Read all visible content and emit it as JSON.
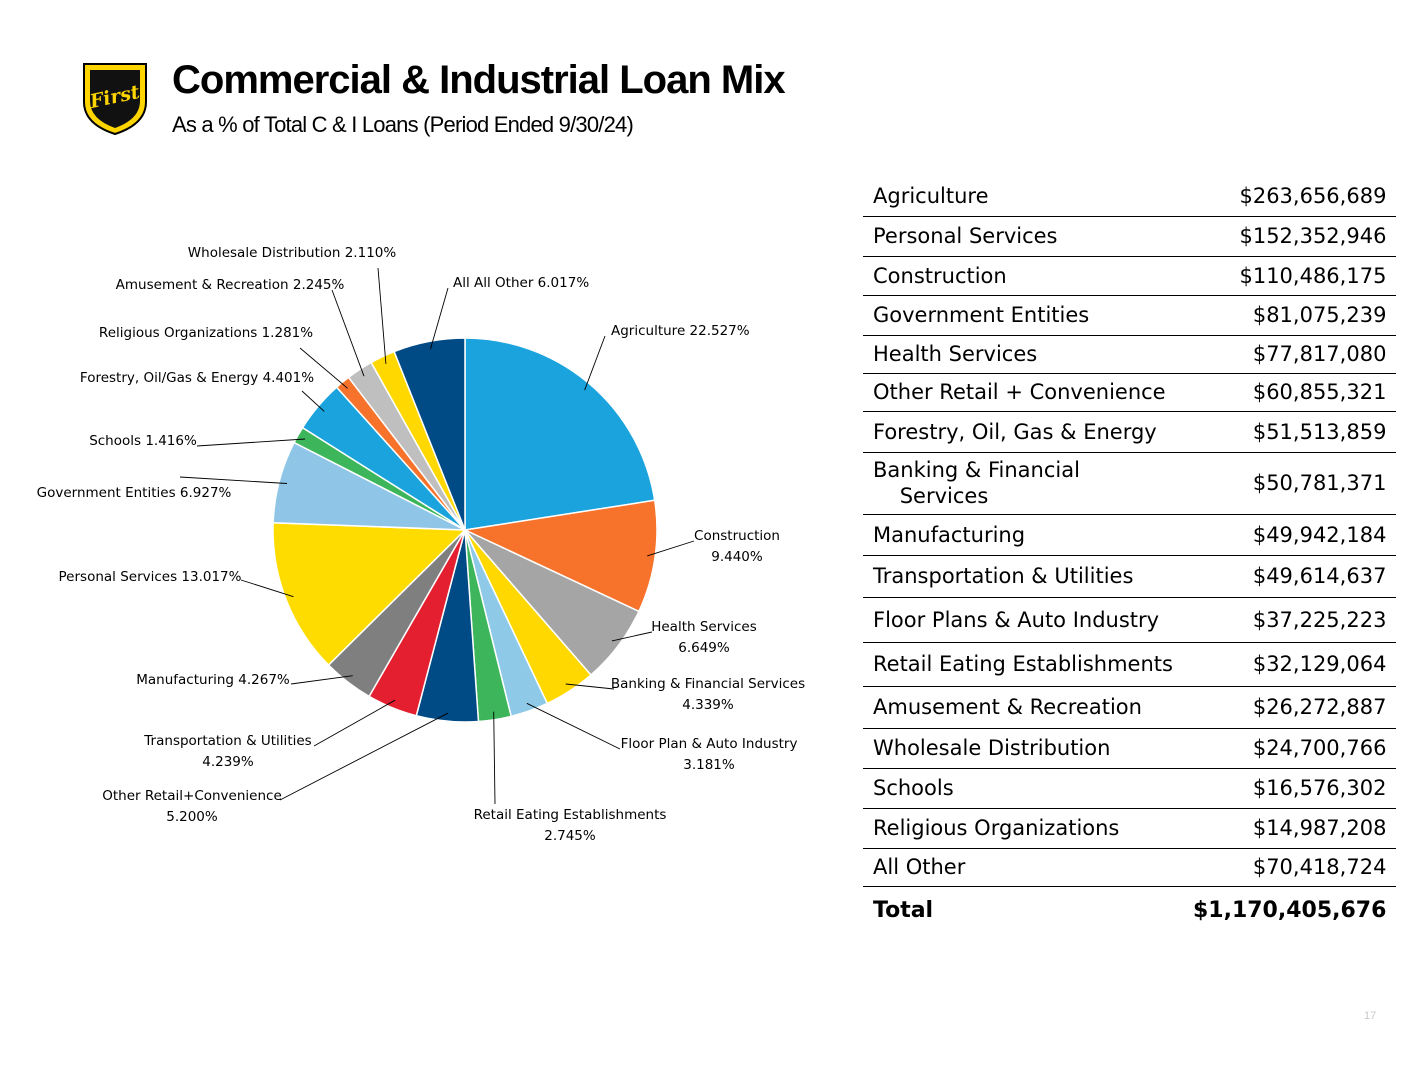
{
  "header": {
    "title": "Commercial & Industrial Loan Mix",
    "subtitle": "As a % of Total C & I Loans (Period Ended 9/30/24)",
    "logo_text": "First"
  },
  "chart_data": {
    "type": "pie",
    "title": "",
    "slices": [
      {
        "label": "Agriculture 22.527%",
        "value": 22.527,
        "color": "#1aa3dd"
      },
      {
        "label": "Construction\n9.440%",
        "value": 9.44,
        "color": "#f7722a"
      },
      {
        "label": "Health Services\n6.649%",
        "value": 6.649,
        "color": "#a5a5a5"
      },
      {
        "label": "Banking & Financial Services\n4.339%",
        "value": 4.339,
        "color": "#ffd800"
      },
      {
        "label": "Floor Plan & Auto Industry\n3.181%",
        "value": 3.181,
        "color": "#8ecae8"
      },
      {
        "label": "Retail Eating Establishments\n2.745%",
        "value": 2.745,
        "color": "#3cb55b"
      },
      {
        "label": "Other Retail+Convenience\n5.200%",
        "value": 5.2,
        "color": "#004a86"
      },
      {
        "label": "Transportation & Utilities\n4.239%",
        "value": 4.239,
        "color": "#e31f30"
      },
      {
        "label": "Manufacturing 4.267%",
        "value": 4.267,
        "color": "#7f7f7f"
      },
      {
        "label": "Personal Services 13.017%",
        "value": 13.017,
        "color": "#ffdc00"
      },
      {
        "label": "Government Entities 6.927%",
        "value": 6.927,
        "color": "#8fc5e6"
      },
      {
        "label": "Schools 1.416%",
        "value": 1.416,
        "color": "#3cb55b"
      },
      {
        "label": "Forestry, Oil/Gas & Energy 4.401%",
        "value": 4.401,
        "color": "#1aa3dd"
      },
      {
        "label": "Religious Organizations 1.281%",
        "value": 1.281,
        "color": "#f7722a"
      },
      {
        "label": "Amusement & Recreation 2.245%",
        "value": 2.245,
        "color": "#bfbfbf"
      },
      {
        "label": "Wholesale Distribution 2.110%",
        "value": 2.11,
        "color": "#ffd800"
      },
      {
        "label": "All All Other 6.017%",
        "value": 6.017,
        "color": "#004a86"
      }
    ]
  },
  "table": {
    "rows": [
      {
        "name": "Agriculture",
        "amount": "$263,656,689"
      },
      {
        "name": "Personal Services",
        "amount": "$152,352,946"
      },
      {
        "name": "Construction",
        "amount": "$110,486,175"
      },
      {
        "name": "Government Entities",
        "amount": "$81,075,239"
      },
      {
        "name": "Health Services",
        "amount": "$77,817,080"
      },
      {
        "name": "Other Retail + Convenience",
        "amount": "$60,855,321"
      },
      {
        "name": "Forestry, Oil, Gas & Energy",
        "amount": "$51,513,859"
      },
      {
        "name": "Banking & Financial\n    Services",
        "amount": "$50,781,371"
      },
      {
        "name": "Manufacturing",
        "amount": "$49,942,184"
      },
      {
        "name": "Transportation & Utilities",
        "amount": "$49,614,637"
      },
      {
        "name": "Floor Plans & Auto Industry",
        "amount": "$37,225,223"
      },
      {
        "name": "Retail Eating Establishments",
        "amount": "$32,129,064"
      },
      {
        "name": "Amusement & Recreation",
        "amount": "$26,272,887"
      },
      {
        "name": "Wholesale Distribution",
        "amount": "$24,700,766"
      },
      {
        "name": "Schools",
        "amount": "$16,576,302"
      },
      {
        "name": "Religious Organizations",
        "amount": "$14,987,208"
      },
      {
        "name": "All Other",
        "amount": "$70,418,724"
      }
    ],
    "total": {
      "name": "Total",
      "amount": "$1,170,405,676"
    }
  },
  "footer": {
    "page_number": "17"
  }
}
